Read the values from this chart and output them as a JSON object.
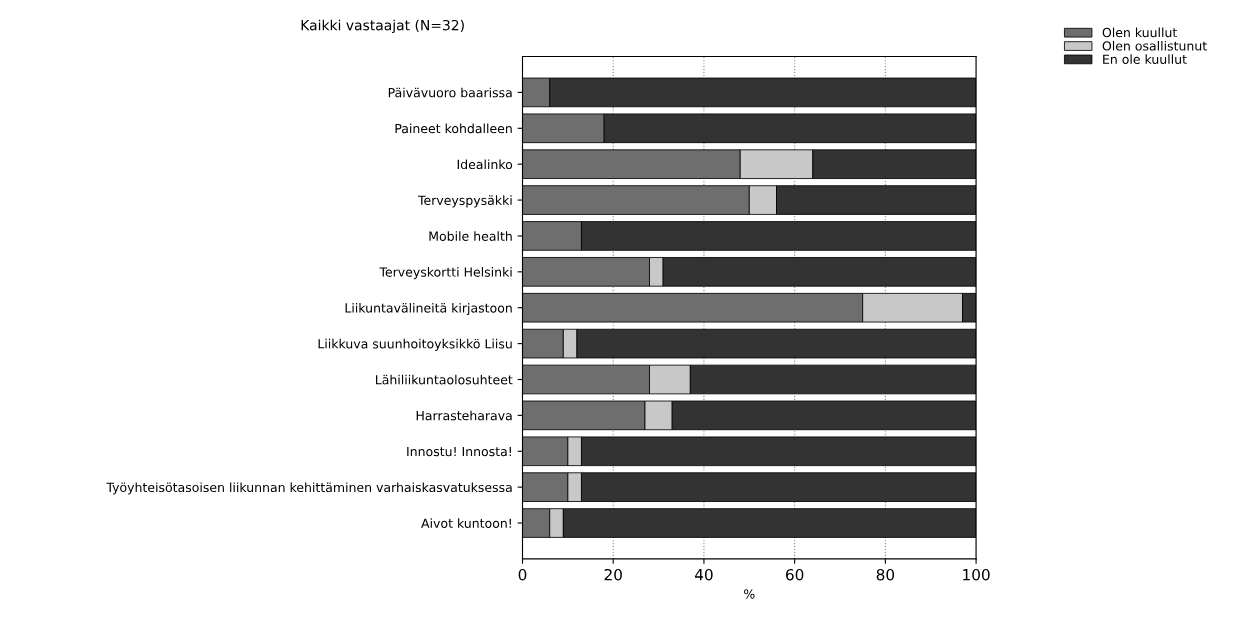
{
  "chart_data": {
    "type": "bar",
    "orientation": "horizontal",
    "stacked": true,
    "title": "Kaikki vastaajat (N=32)",
    "xlabel": "%",
    "categories": [
      "Päivävuoro baarissa",
      "Paineet kohdalleen",
      "Idealinko",
      "Terveyspysäkki",
      "Mobile health",
      "Terveyskortti Helsinki",
      "Liikuntavälineitä kirjastoon",
      "Liikkuva suunhoitoyksikkö Liisu",
      "Lähiliikuntaolosuhteet",
      "Harrasteharava",
      "Innostu! Innosta!",
      "Työyhteisötasoisen liikunnan kehittäminen varhaiskasvatuksessa",
      "Aivot kuntoon!"
    ],
    "series": [
      {
        "name": "Olen kuullut",
        "color": "#6e6e6e",
        "values": [
          6,
          18,
          48,
          50,
          13,
          28,
          75,
          9,
          28,
          27,
          10,
          10,
          6
        ]
      },
      {
        "name": "Olen osallistunut",
        "color": "#c8c8c8",
        "values": [
          0,
          0,
          16,
          6,
          0,
          3,
          22,
          3,
          9,
          6,
          3,
          3,
          3
        ]
      },
      {
        "name": "En ole kuullut",
        "color": "#333333",
        "values": [
          94,
          82,
          36,
          44,
          87,
          69,
          3,
          88,
          63,
          67,
          87,
          87,
          91
        ]
      }
    ],
    "xlim": [
      0,
      100
    ],
    "xticks": [
      0,
      20,
      40,
      60,
      80,
      100
    ],
    "grid": "x",
    "legend": "top right"
  }
}
